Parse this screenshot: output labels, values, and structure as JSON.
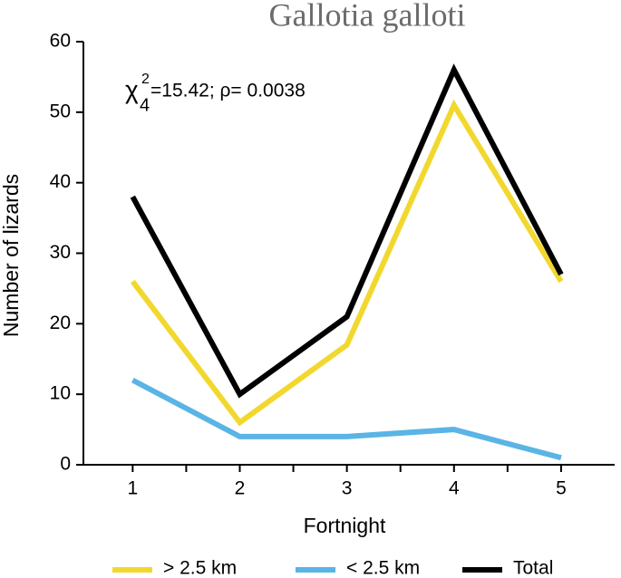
{
  "chart_data": {
    "type": "line",
    "title": "Gallotia galloti",
    "annotation": {
      "symbol": "χ",
      "superscript": "2",
      "subscript": "4",
      "text": "=15.42;  ρ= 0.0038"
    },
    "x_label": "Fortnight",
    "y_label": "Number of lizards",
    "x": [
      1,
      2,
      3,
      4,
      5
    ],
    "series": [
      {
        "name": "> 2.5 km",
        "color": "#f2d82e",
        "values": [
          26,
          6,
          17,
          51,
          26
        ]
      },
      {
        "name": "< 2.5 km",
        "color": "#5ab4e5",
        "values": [
          12,
          4,
          4,
          5,
          1
        ]
      },
      {
        "name": "Total",
        "color": "#000000",
        "values": [
          38,
          10,
          21,
          56,
          27
        ]
      }
    ],
    "xlim": [
      0.54,
      5.5
    ],
    "xticks": [
      1,
      2,
      3,
      4,
      5
    ],
    "xminorticks": [
      1.5,
      2.5,
      3.5,
      4.5
    ],
    "ylim": [
      0,
      60
    ],
    "yticks": [
      0,
      10,
      20,
      30,
      40,
      50,
      60
    ],
    "legend": "bottom"
  }
}
